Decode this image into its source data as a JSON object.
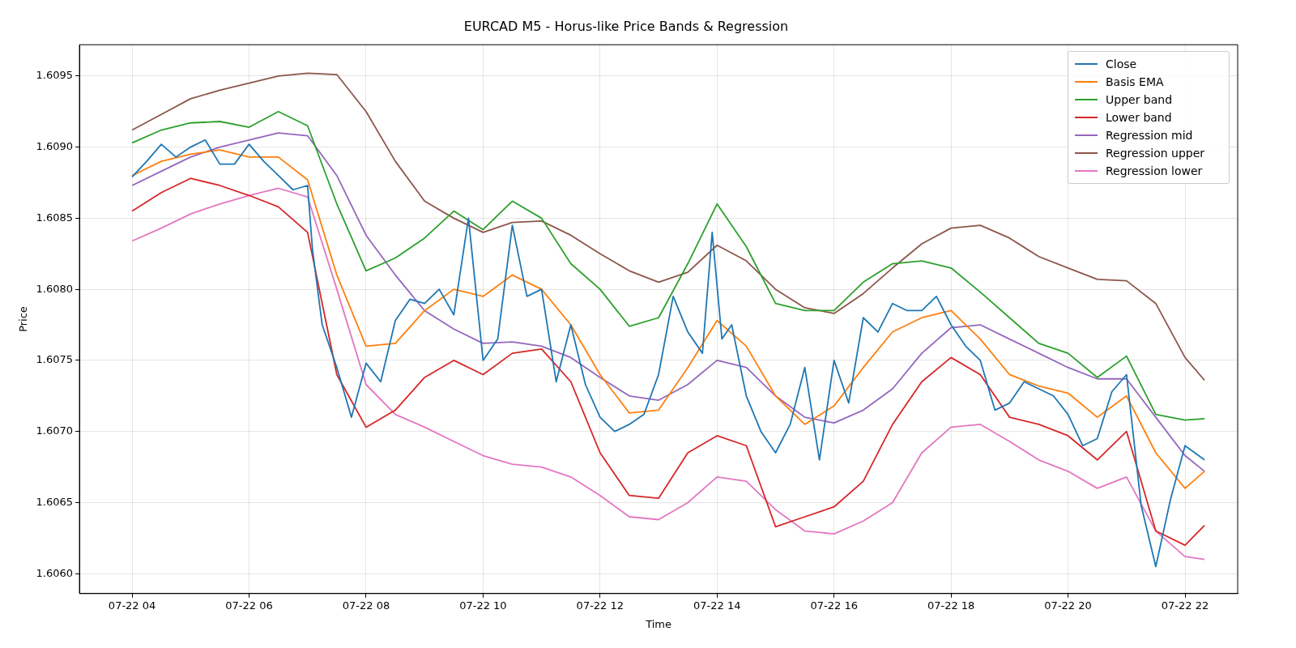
{
  "chart_data": {
    "type": "line",
    "title": "EURCAD M5 - Horus-like Price Bands & Regression",
    "xlabel": "Time",
    "ylabel": "Price",
    "xlim": [
      "--07-22T03:06",
      "--07-22T22:54"
    ],
    "xticks": [
      {
        "value": "--07-22T04:00",
        "label": "07-22 04"
      },
      {
        "value": "--07-22T06:00",
        "label": "07-22 06"
      },
      {
        "value": "--07-22T08:00",
        "label": "07-22 08"
      },
      {
        "value": "--07-22T10:00",
        "label": "07-22 10"
      },
      {
        "value": "--07-22T12:00",
        "label": "07-22 12"
      },
      {
        "value": "--07-22T14:00",
        "label": "07-22 14"
      },
      {
        "value": "--07-22T16:00",
        "label": "07-22 16"
      },
      {
        "value": "--07-22T18:00",
        "label": "07-22 18"
      },
      {
        "value": "--07-22T20:00",
        "label": "07-22 20"
      },
      {
        "value": "--07-22T22:00",
        "label": "07-22 22"
      }
    ],
    "ylim": [
      1.60586,
      1.60972
    ],
    "yticks": [
      {
        "value": 1.606,
        "label": "1.6060"
      },
      {
        "value": 1.6065,
        "label": "1.6065"
      },
      {
        "value": 1.607,
        "label": "1.6070"
      },
      {
        "value": 1.6075,
        "label": "1.6075"
      },
      {
        "value": 1.608,
        "label": "1.6080"
      },
      {
        "value": 1.6085,
        "label": "1.6085"
      },
      {
        "value": 1.609,
        "label": "1.6090"
      },
      {
        "value": 1.6095,
        "label": "1.6095"
      }
    ],
    "grid": true,
    "legend": "top right",
    "marker": "none",
    "line_style": "solid",
    "x": [
      "--07-22T04:00",
      "--07-22T04:30",
      "--07-22T05:00",
      "--07-22T05:30",
      "--07-22T06:00",
      "--07-22T06:30",
      "--07-22T07:00",
      "--07-22T07:30",
      "--07-22T08:00",
      "--07-22T08:30",
      "--07-22T09:00",
      "--07-22T09:30",
      "--07-22T10:00",
      "--07-22T10:30",
      "--07-22T11:00",
      "--07-22T11:30",
      "--07-22T12:00",
      "--07-22T12:30",
      "--07-22T13:00",
      "--07-22T13:30",
      "--07-22T14:00",
      "--07-22T14:30",
      "--07-22T15:00",
      "--07-22T15:30",
      "--07-22T16:00",
      "--07-22T16:30",
      "--07-22T17:00",
      "--07-22T17:30",
      "--07-22T18:00",
      "--07-22T18:30",
      "--07-22T19:00",
      "--07-22T19:30",
      "--07-22T20:00",
      "--07-22T20:30",
      "--07-22T21:00",
      "--07-22T21:30",
      "--07-22T22:00",
      "--07-22T22:20"
    ],
    "series": [
      {
        "name": "Close",
        "color": "#1f77b4",
        "x": [
          "--07-22T04:00",
          "--07-22T04:15",
          "--07-22T04:30",
          "--07-22T04:45",
          "--07-22T05:00",
          "--07-22T05:15",
          "--07-22T05:30",
          "--07-22T05:45",
          "--07-22T06:00",
          "--07-22T06:15",
          "--07-22T06:30",
          "--07-22T06:45",
          "--07-22T07:00",
          "--07-22T07:05",
          "--07-22T07:15",
          "--07-22T07:30",
          "--07-22T07:45",
          "--07-22T08:00",
          "--07-22T08:15",
          "--07-22T08:30",
          "--07-22T08:45",
          "--07-22T09:00",
          "--07-22T09:15",
          "--07-22T09:30",
          "--07-22T09:45",
          "--07-22T10:00",
          "--07-22T10:15",
          "--07-22T10:30",
          "--07-22T10:45",
          "--07-22T11:00",
          "--07-22T11:15",
          "--07-22T11:30",
          "--07-22T11:45",
          "--07-22T12:00",
          "--07-22T12:15",
          "--07-22T12:30",
          "--07-22T12:45",
          "--07-22T13:00",
          "--07-22T13:15",
          "--07-22T13:30",
          "--07-22T13:45",
          "--07-22T13:55",
          "--07-22T14:05",
          "--07-22T14:15",
          "--07-22T14:30",
          "--07-22T14:45",
          "--07-22T15:00",
          "--07-22T15:15",
          "--07-22T15:30",
          "--07-22T15:45",
          "--07-22T16:00",
          "--07-22T16:15",
          "--07-22T16:30",
          "--07-22T16:45",
          "--07-22T17:00",
          "--07-22T17:15",
          "--07-22T17:30",
          "--07-22T17:45",
          "--07-22T18:00",
          "--07-22T18:15",
          "--07-22T18:30",
          "--07-22T18:45",
          "--07-22T19:00",
          "--07-22T19:15",
          "--07-22T19:30",
          "--07-22T19:45",
          "--07-22T20:00",
          "--07-22T20:15",
          "--07-22T20:30",
          "--07-22T20:45",
          "--07-22T21:00",
          "--07-22T21:15",
          "--07-22T21:30",
          "--07-22T21:45",
          "--07-22T22:00",
          "--07-22T22:20"
        ],
        "values": [
          1.60879,
          1.6089,
          1.60902,
          1.60893,
          1.609,
          1.60905,
          1.60888,
          1.60888,
          1.60902,
          1.6089,
          1.6088,
          1.6087,
          1.60873,
          1.60828,
          1.60775,
          1.60745,
          1.6071,
          1.60748,
          1.60735,
          1.60778,
          1.60793,
          1.6079,
          1.608,
          1.60782,
          1.6085,
          1.6075,
          1.60765,
          1.60845,
          1.60795,
          1.608,
          1.60735,
          1.60775,
          1.60733,
          1.6071,
          1.607,
          1.60705,
          1.60712,
          1.6074,
          1.60795,
          1.6077,
          1.60755,
          1.6084,
          1.60765,
          1.60775,
          1.60725,
          1.607,
          1.60685,
          1.60705,
          1.60745,
          1.6068,
          1.6075,
          1.6072,
          1.6078,
          1.6077,
          1.6079,
          1.60785,
          1.60785,
          1.60795,
          1.60775,
          1.6076,
          1.6075,
          1.60715,
          1.6072,
          1.60735,
          1.6073,
          1.60725,
          1.60712,
          1.6069,
          1.60695,
          1.60728,
          1.6074,
          1.60648,
          1.60605,
          1.60652,
          1.6069,
          1.6068
        ]
      },
      {
        "name": "Basis EMA",
        "color": "#ff7f0e",
        "values": [
          1.6088,
          1.6089,
          1.60895,
          1.60898,
          1.60893,
          1.60893,
          1.60877,
          1.6081,
          1.6076,
          1.60762,
          1.60785,
          1.608,
          1.60795,
          1.6081,
          1.608,
          1.60775,
          1.6074,
          1.60713,
          1.60715,
          1.60745,
          1.60778,
          1.6076,
          1.60725,
          1.60705,
          1.60718,
          1.60745,
          1.6077,
          1.6078,
          1.60785,
          1.60765,
          1.6074,
          1.60732,
          1.60727,
          1.6071,
          1.60725,
          1.60685,
          1.6066,
          1.60672
        ]
      },
      {
        "name": "Upper band",
        "color": "#2ca02c",
        "values": [
          1.60903,
          1.60912,
          1.60917,
          1.60918,
          1.60914,
          1.60925,
          1.60915,
          1.6086,
          1.60813,
          1.60822,
          1.60836,
          1.60855,
          1.60842,
          1.60862,
          1.6085,
          1.60818,
          1.608,
          1.60774,
          1.6078,
          1.60818,
          1.6086,
          1.6083,
          1.6079,
          1.60785,
          1.60785,
          1.60805,
          1.60818,
          1.6082,
          1.60815,
          1.60798,
          1.6078,
          1.60762,
          1.60755,
          1.60738,
          1.60753,
          1.60712,
          1.60708,
          1.60709
        ]
      },
      {
        "name": "Lower band",
        "color": "#d62728",
        "values": [
          1.60855,
          1.60868,
          1.60878,
          1.60873,
          1.60866,
          1.60858,
          1.6084,
          1.6074,
          1.60703,
          1.60715,
          1.60738,
          1.6075,
          1.6074,
          1.60755,
          1.60758,
          1.60735,
          1.60685,
          1.60655,
          1.60653,
          1.60685,
          1.60697,
          1.6069,
          1.60633,
          1.6064,
          1.60647,
          1.60665,
          1.60705,
          1.60735,
          1.60752,
          1.6074,
          1.6071,
          1.60705,
          1.60697,
          1.6068,
          1.607,
          1.6063,
          1.6062,
          1.60634
        ]
      },
      {
        "name": "Regression mid",
        "color": "#9467bd",
        "values": [
          1.60873,
          1.60883,
          1.60893,
          1.609,
          1.60905,
          1.6091,
          1.60908,
          1.6088,
          1.60838,
          1.6081,
          1.60785,
          1.60772,
          1.60762,
          1.60763,
          1.6076,
          1.60752,
          1.60738,
          1.60725,
          1.60722,
          1.60733,
          1.6075,
          1.60745,
          1.60725,
          1.6071,
          1.60706,
          1.60715,
          1.6073,
          1.60755,
          1.60773,
          1.60775,
          1.60765,
          1.60755,
          1.60745,
          1.60737,
          1.60737,
          1.6071,
          1.60683,
          1.60672
        ]
      },
      {
        "name": "Regression upper",
        "color": "#8c564b",
        "values": [
          1.60912,
          1.60923,
          1.60934,
          1.6094,
          1.60945,
          1.6095,
          1.60952,
          1.60951,
          1.60925,
          1.6089,
          1.60862,
          1.6085,
          1.6084,
          1.60847,
          1.60848,
          1.60838,
          1.60825,
          1.60813,
          1.60805,
          1.60812,
          1.60831,
          1.6082,
          1.608,
          1.60787,
          1.60783,
          1.60797,
          1.60815,
          1.60832,
          1.60843,
          1.60845,
          1.60836,
          1.60823,
          1.60815,
          1.60807,
          1.60806,
          1.6079,
          1.60752,
          1.60736
        ]
      },
      {
        "name": "Regression lower",
        "color": "#e377c2",
        "values": [
          1.60834,
          1.60843,
          1.60853,
          1.6086,
          1.60866,
          1.60871,
          1.60865,
          1.608,
          1.60733,
          1.60712,
          1.60703,
          1.60693,
          1.60683,
          1.60677,
          1.60675,
          1.60668,
          1.60655,
          1.6064,
          1.60638,
          1.6065,
          1.60668,
          1.60665,
          1.60645,
          1.6063,
          1.60628,
          1.60637,
          1.6065,
          1.60685,
          1.60703,
          1.60705,
          1.60693,
          1.6068,
          1.60672,
          1.6066,
          1.60668,
          1.6063,
          1.60612,
          1.6061
        ]
      }
    ]
  }
}
